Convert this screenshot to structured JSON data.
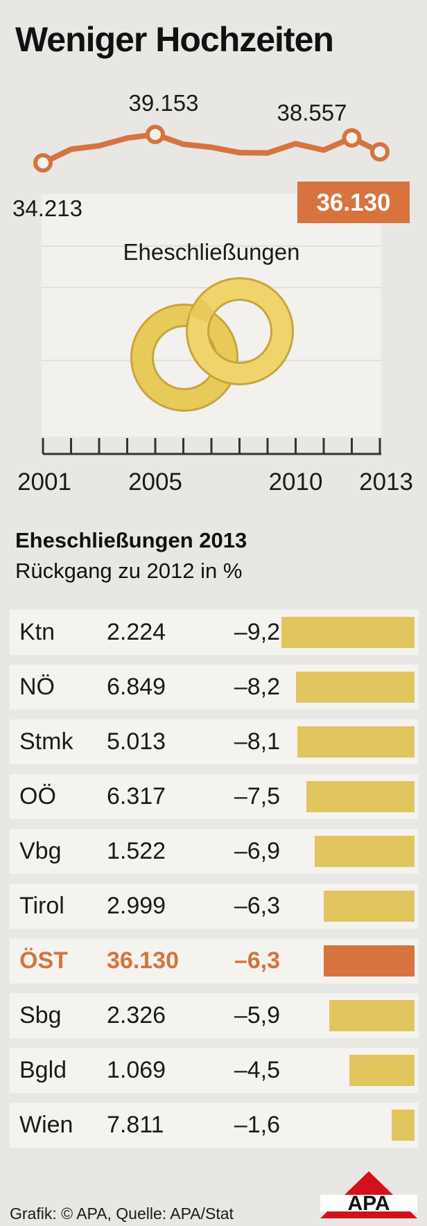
{
  "title": "Weniger Hochzeiten",
  "chart_data": [
    {
      "type": "line",
      "title": "Weniger Hochzeiten",
      "subtitle": "Eheschließungen",
      "x": [
        2001,
        2002,
        2003,
        2004,
        2005,
        2006,
        2007,
        2008,
        2009,
        2010,
        2011,
        2012,
        2013
      ],
      "values": [
        34213,
        36570,
        37195,
        38528,
        39153,
        37458,
        36923,
        35996,
        35935,
        37545,
        36426,
        38557,
        36130
      ],
      "labels": {
        "start": "34.213",
        "peak": "39.153",
        "second_peak": "38.557",
        "last": "36.130"
      },
      "highlighted_years": [
        2001,
        2005,
        2012,
        2013
      ],
      "xticks": [
        "2001",
        "2005",
        "2010",
        "2013"
      ],
      "ylim": [
        30000,
        42000
      ],
      "colors": {
        "line": "#d6733f",
        "highlight_box": "#d6733f",
        "rings": "#e1c55f"
      }
    },
    {
      "type": "bar",
      "title": "Eheschließungen 2013",
      "subtitle": "Rückgang zu 2012 in %",
      "categories": [
        "Ktn",
        "NÖ",
        "Stmk",
        "OÖ",
        "Vbg",
        "Tirol",
        "ÖST",
        "Sbg",
        "Bgld",
        "Wien"
      ],
      "counts": [
        "2.224",
        "6.849",
        "5.013",
        "6.317",
        "1.522",
        "2.999",
        "36.130",
        "2.326",
        "1.069",
        "7.811"
      ],
      "values": [
        -9.2,
        -8.2,
        -8.1,
        -7.5,
        -6.9,
        -6.3,
        -6.3,
        -5.9,
        -4.5,
        -1.6
      ],
      "value_labels": [
        "–9,2",
        "–8,2",
        "–8,1",
        "–7,5",
        "–6,9",
        "–6,3",
        "–6,3",
        "–5,9",
        "–4,5",
        "–1,6"
      ],
      "highlight": "ÖST",
      "colors": {
        "bar": "#e1c55f",
        "highlight": "#d6733f"
      }
    }
  ],
  "footer": "Grafik: © APA, Quelle: APA/Stat",
  "logo": "APA"
}
